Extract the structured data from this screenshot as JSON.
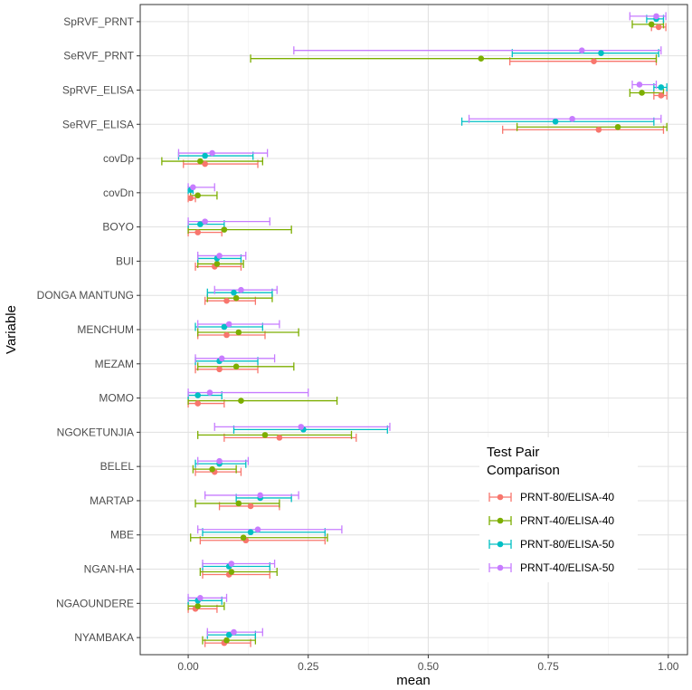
{
  "chart_data": {
    "type": "errorbar-dot",
    "title": "",
    "xlabel": "mean",
    "ylabel": "Variable",
    "xlim": [
      -0.1,
      1.04
    ],
    "x_ticks": [
      0.0,
      0.25,
      0.5,
      0.75,
      1.0
    ],
    "x_tick_labels": [
      "0.00",
      "0.25",
      "0.50",
      "0.75",
      "1.00"
    ],
    "grid": true,
    "legend_position": "right-inside-bottom",
    "legend_title": [
      "Test Pair",
      "Comparison"
    ],
    "categories": [
      "SpRVF_PRNT",
      "SeRVF_PRNT",
      "SpRVF_ELISA",
      "SeRVF_ELISA",
      "covDp",
      "covDn",
      "BOYO",
      "BUI",
      "DONGA MANTUNG",
      "MENCHUM",
      "MEZAM",
      "MOMO",
      "NGOKETUNJIA",
      "BELEL",
      "MARTAP",
      "MBE",
      "NGAN-HA",
      "NGAOUNDERE",
      "NYAMBAKA"
    ],
    "series": [
      {
        "name": "PRNT-80/ELISA-40",
        "color": "#F8766D",
        "mean": [
          0.98,
          0.845,
          0.985,
          0.855,
          0.035,
          0.005,
          0.02,
          0.055,
          0.08,
          0.08,
          0.065,
          0.02,
          0.19,
          0.055,
          0.13,
          0.12,
          0.085,
          0.015,
          0.075
        ],
        "lower": [
          0.965,
          0.67,
          0.97,
          0.655,
          -0.01,
          0.0,
          0.0,
          0.015,
          0.035,
          0.02,
          0.015,
          0.0,
          0.075,
          0.015,
          0.065,
          0.025,
          0.03,
          0.0,
          0.035
        ],
        "upper": [
          0.995,
          0.975,
          0.997,
          0.99,
          0.145,
          0.015,
          0.07,
          0.11,
          0.14,
          0.16,
          0.145,
          0.075,
          0.35,
          0.11,
          0.19,
          0.285,
          0.17,
          0.06,
          0.13
        ]
      },
      {
        "name": "PRNT-40/ELISA-40",
        "color": "#7CAE00",
        "mean": [
          0.965,
          0.61,
          0.945,
          0.895,
          0.025,
          0.02,
          0.075,
          0.06,
          0.1,
          0.105,
          0.1,
          0.11,
          0.16,
          0.05,
          0.105,
          0.115,
          0.09,
          0.02,
          0.08
        ],
        "lower": [
          0.925,
          0.13,
          0.92,
          0.685,
          -0.055,
          0.005,
          0.0,
          0.02,
          0.04,
          0.02,
          0.02,
          0.0,
          0.02,
          0.01,
          0.015,
          0.005,
          0.025,
          0.0,
          0.03
        ],
        "upper": [
          0.99,
          0.975,
          0.99,
          0.997,
          0.155,
          0.06,
          0.215,
          0.115,
          0.175,
          0.23,
          0.22,
          0.31,
          0.34,
          0.1,
          0.19,
          0.29,
          0.185,
          0.075,
          0.14
        ]
      },
      {
        "name": "PRNT-80/ELISA-50",
        "color": "#00BFC4",
        "mean": [
          0.975,
          0.86,
          0.985,
          0.765,
          0.035,
          0.005,
          0.025,
          0.06,
          0.095,
          0.075,
          0.065,
          0.02,
          0.24,
          0.065,
          0.15,
          0.13,
          0.085,
          0.02,
          0.085
        ],
        "lower": [
          0.955,
          0.675,
          0.97,
          0.57,
          -0.02,
          0.0,
          0.0,
          0.02,
          0.04,
          0.015,
          0.015,
          0.0,
          0.095,
          0.015,
          0.1,
          0.03,
          0.03,
          0.0,
          0.04
        ],
        "upper": [
          0.99,
          0.98,
          0.997,
          0.97,
          0.135,
          0.01,
          0.075,
          0.11,
          0.175,
          0.155,
          0.145,
          0.07,
          0.415,
          0.12,
          0.215,
          0.285,
          0.17,
          0.07,
          0.14
        ]
      },
      {
        "name": "PRNT-40/ELISA-50",
        "color": "#C77CFF",
        "mean": [
          0.975,
          0.82,
          0.94,
          0.8,
          0.05,
          0.01,
          0.035,
          0.065,
          0.11,
          0.085,
          0.07,
          0.045,
          0.235,
          0.065,
          0.15,
          0.145,
          0.09,
          0.025,
          0.095
        ],
        "lower": [
          0.92,
          0.22,
          0.925,
          0.585,
          -0.02,
          0.0,
          0.0,
          0.02,
          0.055,
          0.02,
          0.015,
          0.0,
          0.055,
          0.02,
          0.035,
          0.02,
          0.03,
          0.0,
          0.04
        ],
        "upper": [
          0.995,
          0.985,
          0.975,
          0.985,
          0.165,
          0.055,
          0.17,
          0.12,
          0.185,
          0.19,
          0.18,
          0.25,
          0.42,
          0.125,
          0.23,
          0.32,
          0.18,
          0.08,
          0.155
        ]
      }
    ]
  }
}
